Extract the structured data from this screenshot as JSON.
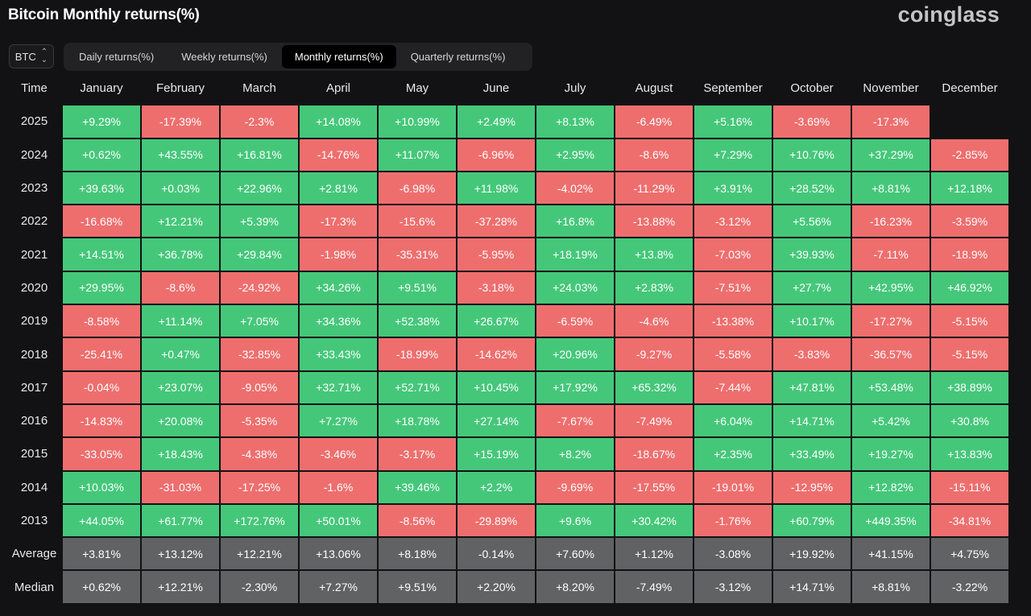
{
  "header": {
    "title": "Bitcoin Monthly returns(%)",
    "brand": "coinglass"
  },
  "asset_select": {
    "value": "BTC",
    "icon": "chevron-up-down-icon"
  },
  "tabs": [
    {
      "label": "Daily returns(%)",
      "active": false
    },
    {
      "label": "Weekly returns(%)",
      "active": false
    },
    {
      "label": "Monthly returns(%)",
      "active": true
    },
    {
      "label": "Quarterly returns(%)",
      "active": false
    }
  ],
  "colors": {
    "positive": "#45c77a",
    "negative": "#ee6e6e",
    "summary": "#606264",
    "background": "#121214"
  },
  "table": {
    "time_label": "Time",
    "months": [
      "January",
      "February",
      "March",
      "April",
      "May",
      "June",
      "July",
      "August",
      "September",
      "October",
      "November",
      "December"
    ],
    "rows": [
      {
        "year": "2025",
        "values": [
          "+9.29%",
          "-17.39%",
          "-2.3%",
          "+14.08%",
          "+10.99%",
          "+2.49%",
          "+8.13%",
          "-6.49%",
          "+5.16%",
          "-3.69%",
          "-17.3%",
          ""
        ]
      },
      {
        "year": "2024",
        "values": [
          "+0.62%",
          "+43.55%",
          "+16.81%",
          "-14.76%",
          "+11.07%",
          "-6.96%",
          "+2.95%",
          "-8.6%",
          "+7.29%",
          "+10.76%",
          "+37.29%",
          "-2.85%"
        ]
      },
      {
        "year": "2023",
        "values": [
          "+39.63%",
          "+0.03%",
          "+22.96%",
          "+2.81%",
          "-6.98%",
          "+11.98%",
          "-4.02%",
          "-11.29%",
          "+3.91%",
          "+28.52%",
          "+8.81%",
          "+12.18%"
        ]
      },
      {
        "year": "2022",
        "values": [
          "-16.68%",
          "+12.21%",
          "+5.39%",
          "-17.3%",
          "-15.6%",
          "-37.28%",
          "+16.8%",
          "-13.88%",
          "-3.12%",
          "+5.56%",
          "-16.23%",
          "-3.59%"
        ]
      },
      {
        "year": "2021",
        "values": [
          "+14.51%",
          "+36.78%",
          "+29.84%",
          "-1.98%",
          "-35.31%",
          "-5.95%",
          "+18.19%",
          "+13.8%",
          "-7.03%",
          "+39.93%",
          "-7.11%",
          "-18.9%"
        ]
      },
      {
        "year": "2020",
        "values": [
          "+29.95%",
          "-8.6%",
          "-24.92%",
          "+34.26%",
          "+9.51%",
          "-3.18%",
          "+24.03%",
          "+2.83%",
          "-7.51%",
          "+27.7%",
          "+42.95%",
          "+46.92%"
        ]
      },
      {
        "year": "2019",
        "values": [
          "-8.58%",
          "+11.14%",
          "+7.05%",
          "+34.36%",
          "+52.38%",
          "+26.67%",
          "-6.59%",
          "-4.6%",
          "-13.38%",
          "+10.17%",
          "-17.27%",
          "-5.15%"
        ]
      },
      {
        "year": "2018",
        "values": [
          "-25.41%",
          "+0.47%",
          "-32.85%",
          "+33.43%",
          "-18.99%",
          "-14.62%",
          "+20.96%",
          "-9.27%",
          "-5.58%",
          "-3.83%",
          "-36.57%",
          "-5.15%"
        ]
      },
      {
        "year": "2017",
        "values": [
          "-0.04%",
          "+23.07%",
          "-9.05%",
          "+32.71%",
          "+52.71%",
          "+10.45%",
          "+17.92%",
          "+65.32%",
          "-7.44%",
          "+47.81%",
          "+53.48%",
          "+38.89%"
        ]
      },
      {
        "year": "2016",
        "values": [
          "-14.83%",
          "+20.08%",
          "-5.35%",
          "+7.27%",
          "+18.78%",
          "+27.14%",
          "-7.67%",
          "-7.49%",
          "+6.04%",
          "+14.71%",
          "+5.42%",
          "+30.8%"
        ]
      },
      {
        "year": "2015",
        "values": [
          "-33.05%",
          "+18.43%",
          "-4.38%",
          "-3.46%",
          "-3.17%",
          "+15.19%",
          "+8.2%",
          "-18.67%",
          "+2.35%",
          "+33.49%",
          "+19.27%",
          "+13.83%"
        ]
      },
      {
        "year": "2014",
        "values": [
          "+10.03%",
          "-31.03%",
          "-17.25%",
          "-1.6%",
          "+39.46%",
          "+2.2%",
          "-9.69%",
          "-17.55%",
          "-19.01%",
          "-12.95%",
          "+12.82%",
          "-15.11%"
        ]
      },
      {
        "year": "2013",
        "values": [
          "+44.05%",
          "+61.77%",
          "+172.76%",
          "+50.01%",
          "-8.56%",
          "-29.89%",
          "+9.6%",
          "+30.42%",
          "-1.76%",
          "+60.79%",
          "+449.35%",
          "-34.81%"
        ]
      }
    ],
    "summary_rows": [
      {
        "label": "Average",
        "values": [
          "+3.81%",
          "+13.12%",
          "+12.21%",
          "+13.06%",
          "+8.18%",
          "-0.14%",
          "+7.60%",
          "+1.12%",
          "-3.08%",
          "+19.92%",
          "+41.15%",
          "+4.75%"
        ]
      },
      {
        "label": "Median",
        "values": [
          "+0.62%",
          "+12.21%",
          "-2.30%",
          "+7.27%",
          "+9.51%",
          "+2.20%",
          "+8.20%",
          "-7.49%",
          "-3.12%",
          "+14.71%",
          "+8.81%",
          "-3.22%"
        ]
      }
    ]
  }
}
